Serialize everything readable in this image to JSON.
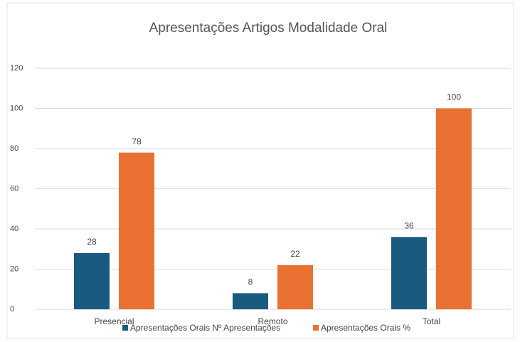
{
  "chart_data": {
    "type": "bar",
    "title": "Apresentações Artigos Modalidade Oral",
    "categories": [
      "Presencial",
      "Remoto",
      "Total"
    ],
    "series": [
      {
        "name": "Apresentações Orais Nº Apresentações",
        "color": "#195a7f",
        "values": [
          28,
          8,
          36
        ]
      },
      {
        "name": "Apresentações Orais %",
        "color": "#e97132",
        "values": [
          78,
          22,
          100
        ]
      }
    ],
    "ylim": [
      0,
      120
    ],
    "yticks": [
      0,
      20,
      40,
      60,
      80,
      100,
      120
    ],
    "grid": true,
    "legend": "bottom"
  }
}
